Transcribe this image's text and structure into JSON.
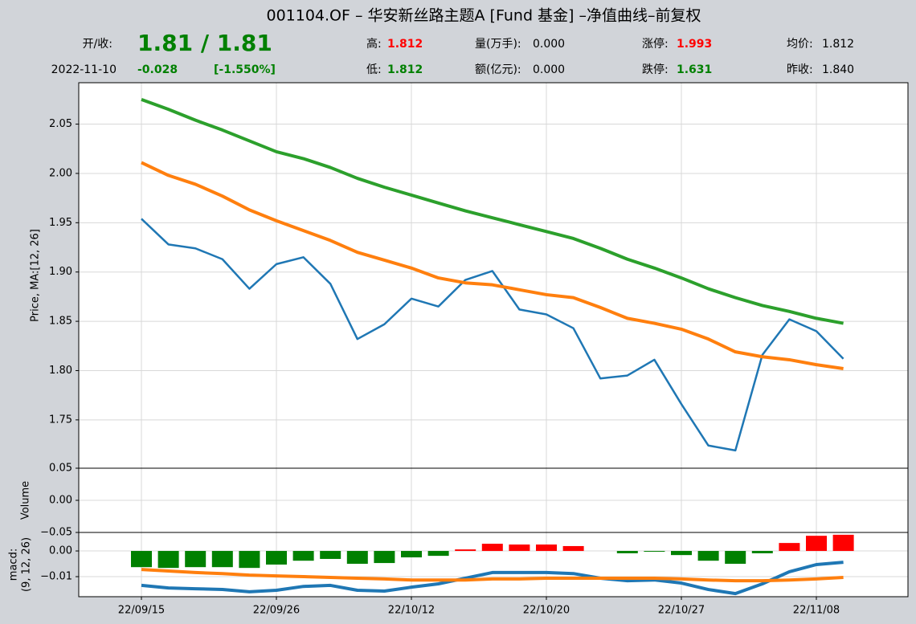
{
  "title": "001104.OF – 华安新丝路主题A [Fund 基金] –净值曲线–前复权",
  "header": {
    "open_close_label": "开/收:",
    "open_close": "1.81 / 1.81",
    "date": "2022-11-10",
    "change": "-0.028",
    "change_pct": "[-1.550%]",
    "high_label": "高:",
    "high": "1.812",
    "low_label": "低:",
    "low": "1.812",
    "volume_label": "量(万手):",
    "volume": "0.000",
    "amount_label": "额(亿元):",
    "amount": "0.000",
    "limit_up_label": "涨停:",
    "limit_up": "1.993",
    "limit_down_label": "跌停:",
    "limit_down": "1.631",
    "avg_label": "均价:",
    "avg": "1.812",
    "prev_close_label": "昨收:",
    "prev_close": "1.840"
  },
  "chart_data": [
    {
      "type": "line",
      "ylabel": "Price, MA:[12, 26]",
      "ylim": [
        1.701,
        2.092
      ],
      "yticks": [
        1.75,
        {
          "value": 1.8,
          "label": "1.80"
        },
        1.85,
        {
          "value": 1.9,
          "label": "1.90"
        },
        1.95,
        {
          "value": 2.0,
          "label": "2.00"
        },
        2.05
      ],
      "grid": true,
      "series": [
        {
          "name": "Price",
          "color": "#1f77b4",
          "width": 2.5,
          "values": [
            1.954,
            1.928,
            1.924,
            1.913,
            1.883,
            1.908,
            1.915,
            1.888,
            1.832,
            1.847,
            1.873,
            1.865,
            1.892,
            1.901,
            1.862,
            1.857,
            1.843,
            1.792,
            1.795,
            1.811,
            1.766,
            1.724,
            1.719,
            1.816,
            1.852,
            1.84,
            1.812
          ]
        },
        {
          "name": "MA12",
          "color": "#ff7f0e",
          "width": 4,
          "values": [
            2.011,
            1.998,
            1.989,
            1.977,
            1.963,
            1.952,
            1.942,
            1.932,
            1.92,
            1.912,
            1.904,
            1.894,
            1.889,
            1.887,
            1.882,
            1.877,
            1.874,
            1.864,
            1.853,
            1.848,
            1.842,
            1.832,
            1.819,
            1.814,
            1.811,
            1.806,
            1.802
          ]
        },
        {
          "name": "MA26",
          "color": "#2ca02c",
          "width": 4,
          "values": [
            2.075,
            2.065,
            2.054,
            2.044,
            2.033,
            2.022,
            2.015,
            2.006,
            1.995,
            1.986,
            1.978,
            1.97,
            1.962,
            1.955,
            1.948,
            1.941,
            1.934,
            1.924,
            1.913,
            1.904,
            1.894,
            1.883,
            1.874,
            1.866,
            1.86,
            1.853,
            1.848
          ]
        }
      ]
    },
    {
      "type": "bar",
      "ylabel": "Volume",
      "color": "#008000",
      "ylim": [
        -0.05,
        0.05
      ],
      "yticks": [
        {
          "value": -0.05,
          "label": "−0.05"
        },
        {
          "value": 0,
          "label": "0.00"
        },
        0.05
      ],
      "grid": true,
      "values": [
        0,
        0,
        0,
        0,
        0,
        0,
        0,
        0,
        0,
        0,
        0,
        0,
        0,
        0,
        0,
        0,
        0,
        0,
        0,
        0,
        0,
        0,
        0,
        0,
        0,
        0,
        0
      ]
    },
    {
      "type": "macd",
      "ylabel": [
        "macd:",
        "(9, 12, 26)"
      ],
      "ylim": [
        -0.0178,
        0.0072
      ],
      "yticks": [
        {
          "value": -0.01,
          "label": "−0.01"
        },
        {
          "value": 0,
          "label": "0.00"
        }
      ],
      "grid": true,
      "categories": [
        "22/09/15",
        null,
        null,
        null,
        null,
        "22/09/26",
        null,
        null,
        null,
        null,
        "22/10/12",
        null,
        null,
        null,
        null,
        "22/10/20",
        null,
        null,
        null,
        null,
        "22/10/27",
        null,
        null,
        null,
        null,
        "22/11/08",
        null
      ],
      "up_color": "#ff0000",
      "down_color": "#008000",
      "histogram": [
        -0.0063,
        -0.0066,
        -0.0063,
        -0.0063,
        -0.0066,
        -0.0053,
        -0.0038,
        -0.0031,
        -0.005,
        -0.0047,
        -0.0025,
        -0.0019,
        0.0006,
        0.0028,
        0.0025,
        0.0025,
        0.0019,
        0,
        -0.0009,
        -0.0003,
        -0.0016,
        -0.0038,
        -0.005,
        -0.0009,
        0.0031,
        0.0059,
        0.0063
      ],
      "series": [
        {
          "name": "MACD",
          "color": "#1f77b4",
          "width": 4,
          "values": [
            -0.0134,
            -0.0144,
            -0.0147,
            -0.015,
            -0.0159,
            -0.0153,
            -0.0138,
            -0.0134,
            -0.0153,
            -0.0156,
            -0.0141,
            -0.0128,
            -0.0106,
            -0.0084,
            -0.0084,
            -0.0084,
            -0.0088,
            -0.0106,
            -0.0116,
            -0.0113,
            -0.0125,
            -0.015,
            -0.0166,
            -0.0128,
            -0.0081,
            -0.0053,
            -0.0044
          ]
        },
        {
          "name": "Signal",
          "color": "#ff7f0e",
          "width": 4,
          "values": [
            -0.0072,
            -0.0078,
            -0.0084,
            -0.0088,
            -0.0094,
            -0.0097,
            -0.01,
            -0.0103,
            -0.0106,
            -0.0109,
            -0.0113,
            -0.0113,
            -0.0113,
            -0.0109,
            -0.0109,
            -0.0106,
            -0.0106,
            -0.0106,
            -0.0106,
            -0.0106,
            -0.0109,
            -0.0113,
            -0.0116,
            -0.0116,
            -0.0113,
            -0.0109,
            -0.0103
          ]
        }
      ]
    }
  ]
}
